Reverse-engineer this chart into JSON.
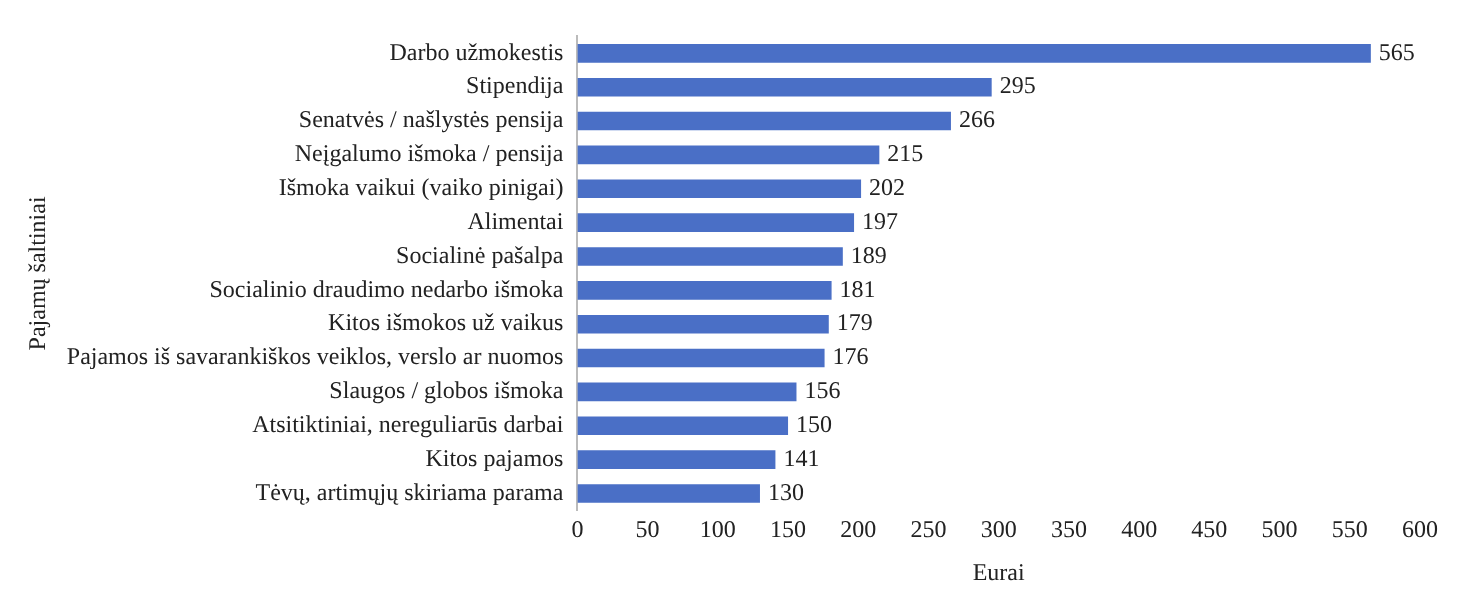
{
  "chart_data": {
    "type": "bar",
    "orientation": "horizontal",
    "xlabel": "Eurai",
    "ylabel": "Pajamų šaltiniai",
    "categories": [
      "Darbo užmokestis",
      "Stipendija",
      "Senatvės / našlystės pensija",
      "Neįgalumo išmoka / pensija",
      "Išmoka vaikui (vaiko pinigai)",
      "Alimentai",
      "Socialinė pašalpa",
      "Socialinio draudimo nedarbo išmoka",
      "Kitos išmokos už vaikus",
      "Pajamos iš savarankiškos veiklos, verslo ar nuomos",
      "Slaugos / globos išmoka",
      "Atsitiktiniai, nereguliarūs darbai",
      "Kitos pajamos",
      "Tėvų, artimųjų skiriama parama"
    ],
    "values": [
      565,
      295,
      266,
      215,
      202,
      197,
      189,
      181,
      179,
      176,
      156,
      150,
      141,
      130
    ],
    "color": "#4a6fc6",
    "xlim": [
      0,
      600
    ],
    "xticks": [
      0,
      50,
      100,
      150,
      200,
      250,
      300,
      350,
      400,
      450,
      500,
      550,
      600
    ],
    "grid": false,
    "legend": false,
    "data_labels": true
  }
}
